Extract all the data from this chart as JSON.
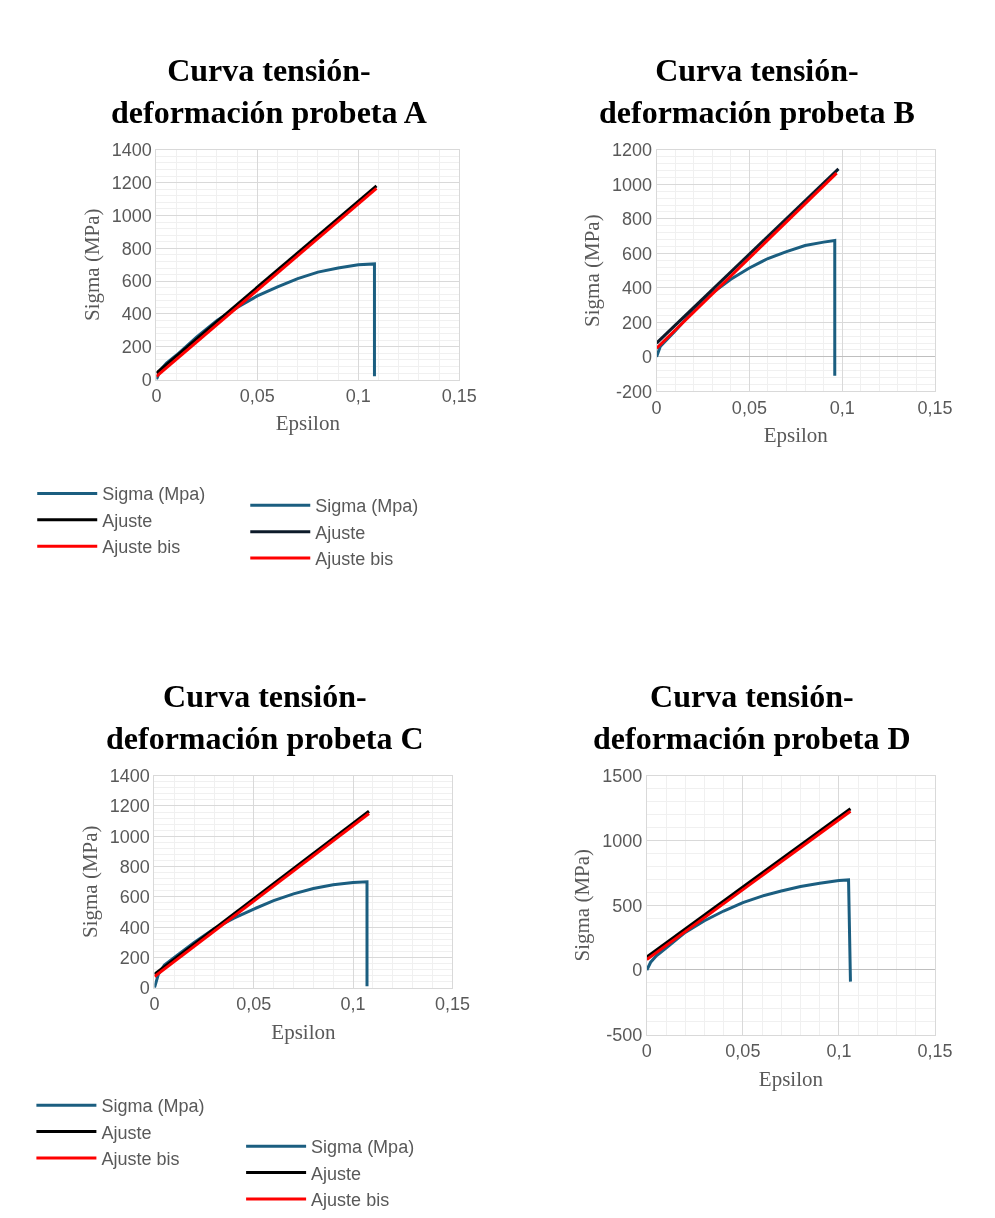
{
  "chart_data": [
    {
      "type": "line",
      "title": "Curva tensión-deformación probeta A",
      "xlabel": "Epsilon",
      "ylabel": "Sigma (MPa)",
      "xlim": [
        0,
        0.15
      ],
      "ylim": [
        0,
        1400
      ],
      "xticks": [
        0,
        {
          "value": 0.05,
          "label": "0,05"
        },
        {
          "value": 0.1,
          "label": "0,1"
        },
        {
          "value": 0.15,
          "label": "0,15"
        }
      ],
      "yticks": [
        0,
        200,
        400,
        600,
        800,
        1000,
        1200,
        1400
      ],
      "grid": true,
      "legend": "bottom",
      "marker": "none",
      "line_style": "solid",
      "series": [
        {
          "name": "Sigma (Mpa)",
          "color": "#1b5e80",
          "x": [
            0,
            0.002,
            0.005,
            0.01,
            0.02,
            0.03,
            0.04,
            0.05,
            0.06,
            0.07,
            0.08,
            0.09,
            0.1,
            0.108,
            0.108
          ],
          "values": [
            0,
            60,
            100,
            150,
            260,
            360,
            440,
            510,
            565,
            615,
            655,
            680,
            700,
            705,
            20
          ]
        },
        {
          "name": "Ajuste",
          "color": "#000000",
          "x": [
            0,
            0.109
          ],
          "values": [
            40,
            1180
          ]
        },
        {
          "name": "Ajuste bis",
          "color": "#ff0000",
          "x": [
            0,
            0.109
          ],
          "values": [
            20,
            1165
          ]
        }
      ]
    },
    {
      "type": "line",
      "title": "Curva tensión-deformación probeta B",
      "xlabel": "Epsilon",
      "ylabel": "Sigma (MPa)",
      "xlim": [
        0,
        0.15
      ],
      "ylim": [
        -200,
        1200
      ],
      "xticks": [
        0,
        {
          "value": 0.05,
          "label": "0,05"
        },
        {
          "value": 0.1,
          "label": "0,1"
        },
        {
          "value": 0.15,
          "label": "0,15"
        }
      ],
      "yticks": [
        -200,
        0,
        200,
        400,
        600,
        800,
        1000,
        1200
      ],
      "grid": true,
      "legend": "bottom",
      "marker": "none",
      "line_style": "solid",
      "series": [
        {
          "name": "Sigma (Mpa)",
          "color": "#1b5e80",
          "x": [
            0,
            0.002,
            0.01,
            0.02,
            0.03,
            0.04,
            0.05,
            0.06,
            0.07,
            0.08,
            0.09,
            0.096,
            0.096
          ],
          "values": [
            0,
            60,
            150,
            270,
            370,
            450,
            515,
            570,
            610,
            645,
            665,
            675,
            -110
          ]
        },
        {
          "name": "Ajuste",
          "color": "#0d1b2a",
          "x": [
            0,
            0.098
          ],
          "values": [
            80,
            1090
          ]
        },
        {
          "name": "Ajuste bis",
          "color": "#ff0000",
          "x": [
            0,
            0.097
          ],
          "values": [
            50,
            1065
          ]
        }
      ]
    },
    {
      "type": "line",
      "title": "Curva tensión-deformación probeta C",
      "xlabel": "Epsilon",
      "ylabel": "Sigma (MPa)",
      "xlim": [
        0,
        0.15
      ],
      "ylim": [
        0,
        1400
      ],
      "xticks": [
        0,
        {
          "value": 0.05,
          "label": "0,05"
        },
        {
          "value": 0.1,
          "label": "0,1"
        },
        {
          "value": 0.15,
          "label": "0,15"
        }
      ],
      "yticks": [
        0,
        200,
        400,
        600,
        800,
        1000,
        1200,
        1400
      ],
      "grid": true,
      "legend": "bottom",
      "marker": "none",
      "line_style": "solid",
      "series": [
        {
          "name": "Sigma (Mpa)",
          "color": "#1b5e80",
          "x": [
            0,
            0.002,
            0.005,
            0.01,
            0.02,
            0.03,
            0.04,
            0.05,
            0.06,
            0.07,
            0.08,
            0.09,
            0.1,
            0.107,
            0.107
          ],
          "values": [
            0,
            90,
            150,
            200,
            300,
            390,
            460,
            520,
            575,
            620,
            655,
            680,
            695,
            700,
            10
          ]
        },
        {
          "name": "Ajuste",
          "color": "#000000",
          "x": [
            0,
            0.108
          ],
          "values": [
            90,
            1165
          ]
        },
        {
          "name": "Ajuste bis",
          "color": "#ff0000",
          "x": [
            0,
            0.108
          ],
          "values": [
            75,
            1150
          ]
        }
      ]
    },
    {
      "type": "line",
      "title": "Curva tensión-deformación probeta D",
      "xlabel": "Epsilon",
      "ylabel": "Sigma (MPa)",
      "xlim": [
        0,
        0.15
      ],
      "ylim": [
        -500,
        1500
      ],
      "xticks": [
        0,
        {
          "value": 0.05,
          "label": "0,05"
        },
        {
          "value": 0.1,
          "label": "0,1"
        },
        {
          "value": 0.15,
          "label": "0,15"
        }
      ],
      "yticks": [
        -500,
        0,
        500,
        1000,
        1500
      ],
      "grid": true,
      "legend": "bottom",
      "marker": "none",
      "line_style": "solid",
      "series": [
        {
          "name": "Sigma (Mpa)",
          "color": "#1b5e80",
          "x": [
            0,
            0.002,
            0.005,
            0.01,
            0.02,
            0.03,
            0.04,
            0.05,
            0.06,
            0.07,
            0.08,
            0.09,
            0.1,
            0.105,
            0.106
          ],
          "values": [
            0,
            60,
            110,
            170,
            290,
            380,
            455,
            520,
            570,
            610,
            645,
            670,
            690,
            695,
            -90
          ]
        },
        {
          "name": "Ajuste",
          "color": "#000000",
          "x": [
            0,
            0.106
          ],
          "values": [
            100,
            1245
          ]
        },
        {
          "name": "Ajuste bis",
          "color": "#ff0000",
          "x": [
            0,
            0.106
          ],
          "values": [
            80,
            1225
          ]
        }
      ]
    }
  ]
}
